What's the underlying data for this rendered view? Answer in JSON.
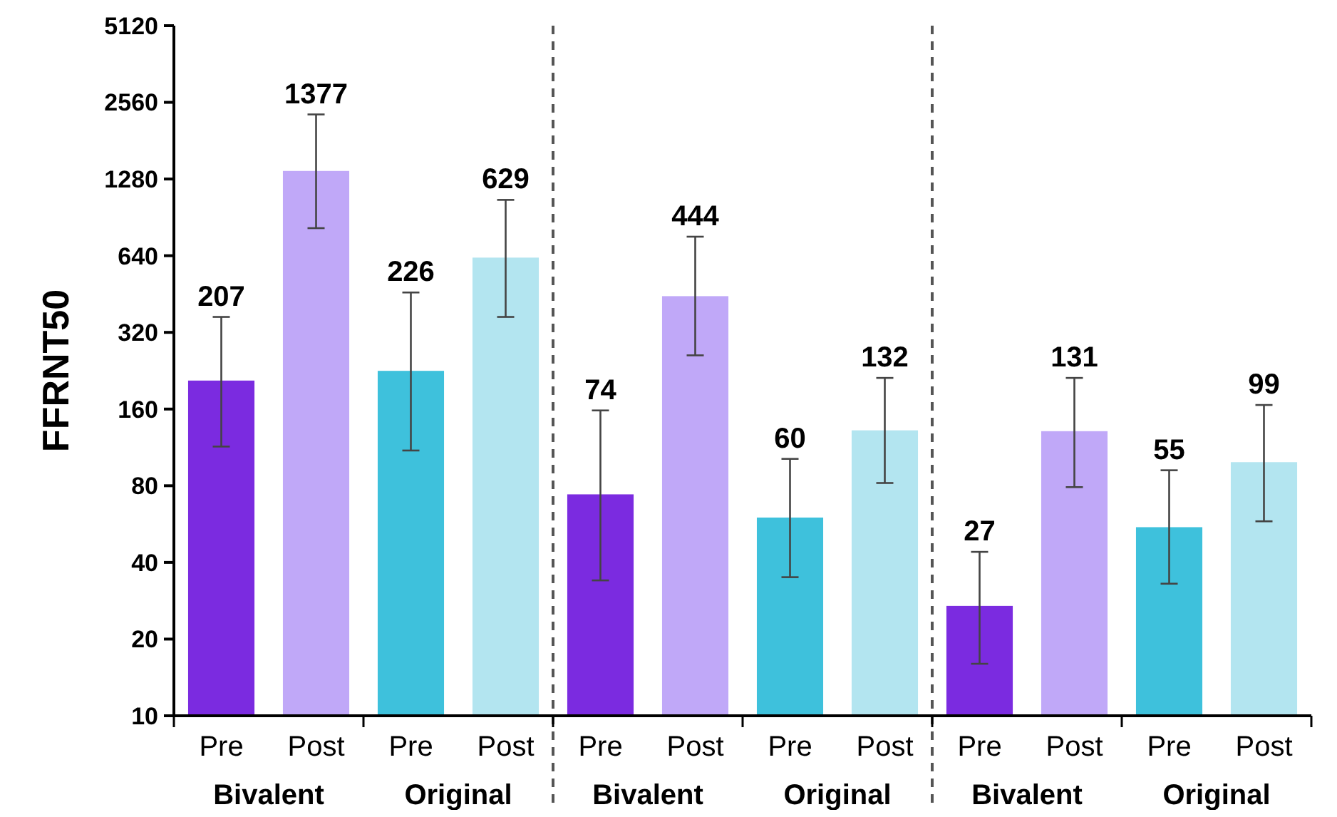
{
  "chart_data": {
    "type": "bar",
    "ylabel": "FFRNT50",
    "categories": [
      "Pre",
      "Post",
      "Pre",
      "Post",
      "Pre",
      "Post",
      "Pre",
      "Post",
      "Pre",
      "Post",
      "Pre",
      "Post"
    ],
    "values": [
      207,
      1377,
      226,
      629,
      74,
      444,
      60,
      132,
      27,
      131,
      55,
      99
    ],
    "colors": [
      "#7b2be0",
      "#c0a8f8",
      "#3ec1dc",
      "#b3e5f0",
      "#7b2be0",
      "#c0a8f8",
      "#3ec1dc",
      "#b3e5f0",
      "#7b2be0",
      "#c0a8f8",
      "#3ec1dc",
      "#b3e5f0"
    ],
    "errors": [
      [
        114,
        368
      ],
      [
        821,
        2295
      ],
      [
        110,
        459
      ],
      [
        368,
        1060
      ],
      [
        34,
        158
      ],
      [
        260,
        760
      ],
      [
        35,
        102
      ],
      [
        82,
        212
      ],
      [
        16,
        44
      ],
      [
        79,
        212
      ],
      [
        33,
        92
      ],
      [
        58,
        166
      ]
    ],
    "data_labels": true,
    "log": "y",
    "ylim": [
      10,
      5120
    ],
    "yticks": [
      10,
      20,
      40,
      80,
      160,
      320,
      640,
      1280,
      2560,
      5120
    ],
    "grid": false,
    "annotations": [
      "Bivalent",
      "Original",
      "Bivalent",
      "Original",
      "Bivalent",
      "Original"
    ]
  }
}
